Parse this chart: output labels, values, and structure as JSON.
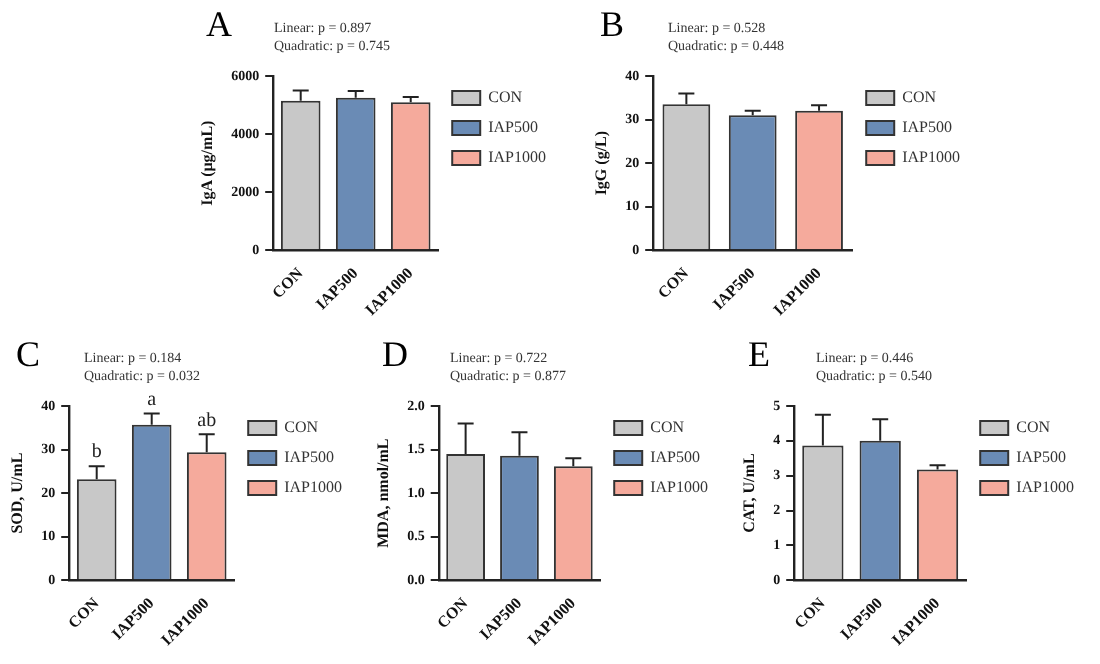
{
  "chart_data": [
    {
      "type": "bar",
      "title": "A",
      "annotations": [
        "Linear: p = 0.897",
        "Quadratic: p = 0.745"
      ],
      "ylabel": "IgA (μg/mL)",
      "categories": [
        "CON",
        "IAP500",
        "IAP1000"
      ],
      "series": [
        {
          "name": "CON",
          "color": "#c8c8c8",
          "values": [
            5150,
            null,
            null
          ],
          "errors": [
            [
              5150,
              5500
            ],
            null,
            null
          ]
        },
        {
          "name": "IAP500",
          "color": "#6a8bb5",
          "values": [
            null,
            5250,
            null
          ],
          "errors": [
            null,
            [
              5250,
              5480
            ],
            null
          ]
        },
        {
          "name": "IAP1000",
          "color": "#f5aa9c",
          "values": [
            null,
            null,
            5100
          ],
          "errors": [
            null,
            null,
            [
              5100,
              5280
            ]
          ]
        }
      ],
      "ylim": [
        0,
        6000
      ],
      "yticks": [
        0,
        2000,
        4000,
        6000
      ],
      "legend": "right"
    },
    {
      "type": "bar",
      "title": "B",
      "annotations": [
        "Linear: p = 0.528",
        "Quadratic: p = 0.448"
      ],
      "ylabel": "IgG (g/L)",
      "categories": [
        "CON",
        "IAP500",
        "IAP1000"
      ],
      "series": [
        {
          "name": "CON",
          "color": "#c8c8c8",
          "values": [
            33.5,
            null,
            null
          ],
          "errors": [
            [
              33.5,
              36
            ],
            null,
            null
          ]
        },
        {
          "name": "IAP500",
          "color": "#6a8bb5",
          "values": [
            null,
            31,
            null
          ],
          "errors": [
            null,
            [
              31,
              32
            ],
            null
          ]
        },
        {
          "name": "IAP1000",
          "color": "#f5aa9c",
          "values": [
            null,
            null,
            32
          ],
          "errors": [
            null,
            null,
            [
              32,
              33.3
            ]
          ]
        }
      ],
      "ylim": [
        0,
        40
      ],
      "yticks": [
        0,
        10,
        20,
        30,
        40
      ],
      "legend": "right"
    },
    {
      "type": "bar",
      "title": "C",
      "annotations": [
        "Linear: p = 0.184",
        "Quadratic: p = 0.032",
        {
          "text": "b",
          "x": "CON",
          "y": 26.2
        },
        {
          "text": "a",
          "x": "IAP500",
          "y": 38.3
        },
        {
          "text": "ab",
          "x": "IAP1000",
          "y": 33.5
        }
      ],
      "ylabel": "SOD, U/mL",
      "categories": [
        "CON",
        "IAP500",
        "IAP1000"
      ],
      "series": [
        {
          "name": "CON",
          "color": "#c8c8c8",
          "values": [
            23.2,
            null,
            null
          ],
          "errors": [
            [
              23.2,
              26.2
            ],
            null,
            null
          ]
        },
        {
          "name": "IAP500",
          "color": "#6a8bb5",
          "values": [
            null,
            35.7,
            null
          ],
          "errors": [
            null,
            [
              35.7,
              38.3
            ],
            null
          ]
        },
        {
          "name": "IAP1000",
          "color": "#f5aa9c",
          "values": [
            null,
            null,
            29.4
          ],
          "errors": [
            null,
            null,
            [
              29.4,
              33.5
            ]
          ]
        }
      ],
      "ylim": [
        0,
        40
      ],
      "yticks": [
        0,
        10,
        20,
        30,
        40
      ],
      "legend": "right"
    },
    {
      "type": "bar",
      "title": "D",
      "annotations": [
        "Linear: p = 0.722",
        "Quadratic: p = 0.877"
      ],
      "ylabel": "MDA, nmol/mL",
      "categories": [
        "CON",
        "IAP500",
        "IAP1000"
      ],
      "series": [
        {
          "name": "CON",
          "color": "#c8c8c8",
          "values": [
            1.45,
            null,
            null
          ],
          "errors": [
            [
              1.45,
              1.8
            ],
            null,
            null
          ]
        },
        {
          "name": "IAP500",
          "color": "#6a8bb5",
          "values": [
            null,
            1.43,
            null
          ],
          "errors": [
            null,
            [
              1.43,
              1.7
            ],
            null
          ]
        },
        {
          "name": "IAP1000",
          "color": "#f5aa9c",
          "values": [
            null,
            null,
            1.31
          ],
          "errors": [
            null,
            null,
            [
              1.31,
              1.4
            ]
          ]
        }
      ],
      "ylim": [
        0,
        2
      ],
      "yticks": [
        {
          "value": 0,
          "label": "0.0"
        },
        0.5,
        {
          "value": 1,
          "label": "1.0"
        },
        1.5,
        {
          "value": 2,
          "label": "2.0"
        }
      ],
      "legend": "right"
    },
    {
      "type": "bar",
      "title": "E",
      "annotations": [
        "Linear: p = 0.446",
        "Quadratic: p = 0.540"
      ],
      "ylabel": "CAT, U/mL",
      "categories": [
        "CON",
        "IAP500",
        "IAP1000"
      ],
      "series": [
        {
          "name": "CON",
          "color": "#c8c8c8",
          "values": [
            3.87,
            null,
            null
          ],
          "errors": [
            [
              3.87,
              4.75
            ],
            null,
            null
          ]
        },
        {
          "name": "IAP500",
          "color": "#6a8bb5",
          "values": [
            null,
            4.0,
            null
          ],
          "errors": [
            null,
            [
              4.0,
              4.62
            ],
            null
          ]
        },
        {
          "name": "IAP1000",
          "color": "#f5aa9c",
          "values": [
            null,
            null,
            3.18
          ],
          "errors": [
            null,
            null,
            [
              3.18,
              3.3
            ]
          ]
        }
      ],
      "ylim": [
        0,
        5
      ],
      "yticks": [
        0,
        1,
        2,
        3,
        4,
        5
      ],
      "legend": "right"
    }
  ]
}
